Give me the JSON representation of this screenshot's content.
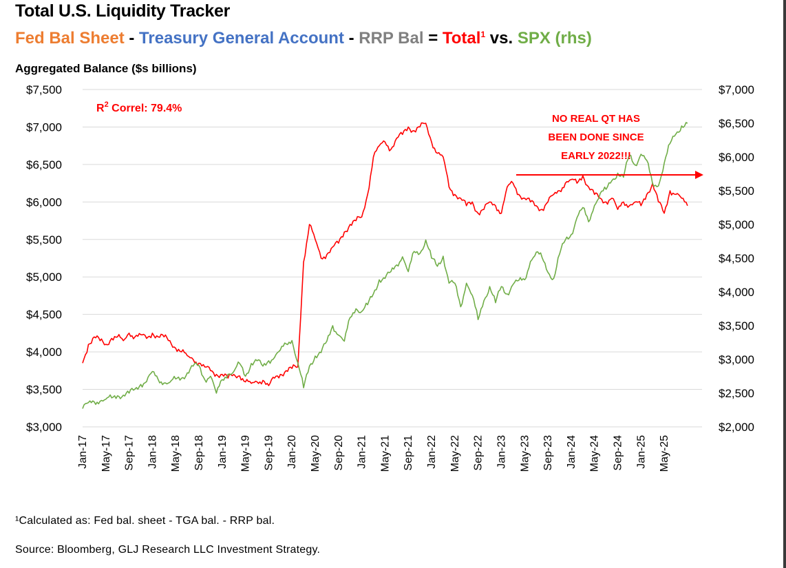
{
  "header": {
    "title": "Total U.S. Liquidity Tracker",
    "subtitle": {
      "fed": "Fed Bal Sheet",
      "sep1": " - ",
      "tga": "Treasury General Account",
      "sep2": " - ",
      "rrp": "RRP Bal",
      "eq": " = ",
      "total": "Total",
      "total_sup": "1",
      "vs": " vs. ",
      "spx": "SPX (rhs)"
    },
    "unit_label": "Aggregated Balance ($s billions)"
  },
  "colors": {
    "fed": "#ed7d31",
    "tga": "#4472c4",
    "rrp": "#808080",
    "total": "#ff0000",
    "spx": "#70ad47",
    "grid": "#d9d9d9"
  },
  "annotations": {
    "correl_prefix": "R",
    "correl_sup": "2",
    "correl_text": " Correl: 79.4%",
    "qt_line1": "NO REAL QT HAS",
    "qt_line2": "BEEN DONE SINCE",
    "qt_line3": "EARLY 2022!!!"
  },
  "footer": {
    "note": "¹Calculated as: Fed bal. sheet - TGA bal. - RRP bal.",
    "source": "Source: Bloomberg, GLJ Research LLC Investment Strategy."
  },
  "chart_data": {
    "type": "line",
    "x_tick_labels": [
      "Jan-17",
      "May-17",
      "Sep-17",
      "Jan-18",
      "May-18",
      "Sep-18",
      "Jan-19",
      "May-19",
      "Sep-19",
      "Jan-20",
      "May-20",
      "Sep-20",
      "Jan-21",
      "May-21",
      "Sep-21",
      "Jan-22",
      "May-22",
      "Sep-22",
      "Jan-23",
      "May-23",
      "Sep-23",
      "Jan-24",
      "May-24",
      "Sep-24",
      "Jan-25",
      "May-25"
    ],
    "y_left": {
      "label": "Aggregated Balance ($s billions)",
      "lim": [
        3000,
        7500
      ],
      "step": 500,
      "ticks": [
        "$3,000",
        "$3,500",
        "$4,000",
        "$4,500",
        "$5,000",
        "$5,500",
        "$6,000",
        "$6,500",
        "$7,000",
        "$7,500"
      ]
    },
    "y_right": {
      "lim": [
        2000,
        7000
      ],
      "step": 500,
      "ticks": [
        "$2,000",
        "$2,500",
        "$3,000",
        "$3,500",
        "$4,000",
        "$4,500",
        "$5,000",
        "$5,500",
        "$6,000",
        "$6,500",
        "$7,000"
      ]
    },
    "grid": true,
    "series": [
      {
        "name": "Total",
        "axis": "left",
        "x": [
          "2017-01",
          "2017-02",
          "2017-03",
          "2017-04",
          "2017-05",
          "2017-06",
          "2017-07",
          "2017-08",
          "2017-09",
          "2017-10",
          "2017-11",
          "2017-12",
          "2018-01",
          "2018-02",
          "2018-03",
          "2018-04",
          "2018-05",
          "2018-06",
          "2018-07",
          "2018-08",
          "2018-09",
          "2018-10",
          "2018-11",
          "2018-12",
          "2019-01",
          "2019-02",
          "2019-03",
          "2019-04",
          "2019-05",
          "2019-06",
          "2019-07",
          "2019-08",
          "2019-09",
          "2019-10",
          "2019-11",
          "2019-12",
          "2020-01",
          "2020-02",
          "2020-03",
          "2020-04",
          "2020-05",
          "2020-06",
          "2020-07",
          "2020-08",
          "2020-09",
          "2020-10",
          "2020-11",
          "2020-12",
          "2021-01",
          "2021-02",
          "2021-03",
          "2021-04",
          "2021-05",
          "2021-06",
          "2021-07",
          "2021-08",
          "2021-09",
          "2021-10",
          "2021-11",
          "2021-12",
          "2022-01",
          "2022-02",
          "2022-03",
          "2022-04",
          "2022-05",
          "2022-06",
          "2022-07",
          "2022-08",
          "2022-09",
          "2022-10",
          "2022-11",
          "2022-12",
          "2023-01",
          "2023-02",
          "2023-03",
          "2023-04",
          "2023-05",
          "2023-06",
          "2023-07",
          "2023-08",
          "2023-09",
          "2023-10",
          "2023-11",
          "2023-12",
          "2024-01",
          "2024-02",
          "2024-03",
          "2024-04",
          "2024-05",
          "2024-06",
          "2024-07",
          "2024-08",
          "2024-09",
          "2024-10",
          "2024-11",
          "2024-12",
          "2025-01",
          "2025-02",
          "2025-03",
          "2025-04",
          "2025-05",
          "2025-06",
          "2025-07",
          "2025-08",
          "2025-09"
        ],
        "values": [
          3850,
          4100,
          4200,
          4150,
          4100,
          4180,
          4200,
          4150,
          4250,
          4200,
          4230,
          4180,
          4250,
          4200,
          4200,
          4150,
          4050,
          4000,
          3950,
          3900,
          3850,
          3800,
          3750,
          3700,
          3700,
          3650,
          3700,
          3680,
          3600,
          3580,
          3600,
          3620,
          3550,
          3650,
          3700,
          3750,
          3780,
          3800,
          5200,
          5700,
          5500,
          5250,
          5300,
          5400,
          5450,
          5600,
          5700,
          5750,
          5800,
          6100,
          6600,
          6750,
          6800,
          6700,
          6850,
          6900,
          7000,
          6950,
          7000,
          7050,
          6800,
          6650,
          6600,
          6200,
          6100,
          6050,
          5950,
          6000,
          5850,
          5900,
          6000,
          5950,
          5850,
          6200,
          6250,
          6100,
          6050,
          6000,
          5950,
          5900,
          6000,
          6100,
          6150,
          6250,
          6300,
          6250,
          6350,
          6200,
          6100,
          6050,
          6000,
          6050,
          5900,
          6000,
          5950,
          6000,
          5950,
          6100,
          6250,
          6000,
          5850,
          6150,
          6100,
          6050,
          5950
        ]
      },
      {
        "name": "SPX (rhs)",
        "axis": "right",
        "x": [
          "2017-01",
          "2017-02",
          "2017-03",
          "2017-04",
          "2017-05",
          "2017-06",
          "2017-07",
          "2017-08",
          "2017-09",
          "2017-10",
          "2017-11",
          "2017-12",
          "2018-01",
          "2018-02",
          "2018-03",
          "2018-04",
          "2018-05",
          "2018-06",
          "2018-07",
          "2018-08",
          "2018-09",
          "2018-10",
          "2018-11",
          "2018-12",
          "2019-01",
          "2019-02",
          "2019-03",
          "2019-04",
          "2019-05",
          "2019-06",
          "2019-07",
          "2019-08",
          "2019-09",
          "2019-10",
          "2019-11",
          "2019-12",
          "2020-01",
          "2020-02",
          "2020-03",
          "2020-04",
          "2020-05",
          "2020-06",
          "2020-07",
          "2020-08",
          "2020-09",
          "2020-10",
          "2020-11",
          "2020-12",
          "2021-01",
          "2021-02",
          "2021-03",
          "2021-04",
          "2021-05",
          "2021-06",
          "2021-07",
          "2021-08",
          "2021-09",
          "2021-10",
          "2021-11",
          "2021-12",
          "2022-01",
          "2022-02",
          "2022-03",
          "2022-04",
          "2022-05",
          "2022-06",
          "2022-07",
          "2022-08",
          "2022-09",
          "2022-10",
          "2022-11",
          "2022-12",
          "2023-01",
          "2023-02",
          "2023-03",
          "2023-04",
          "2023-05",
          "2023-06",
          "2023-07",
          "2023-08",
          "2023-09",
          "2023-10",
          "2023-11",
          "2023-12",
          "2024-01",
          "2024-02",
          "2024-03",
          "2024-04",
          "2024-05",
          "2024-06",
          "2024-07",
          "2024-08",
          "2024-09",
          "2024-10",
          "2024-11",
          "2024-12",
          "2025-01",
          "2025-02",
          "2025-03",
          "2025-04",
          "2025-05",
          "2025-06",
          "2025-07",
          "2025-08",
          "2025-09"
        ],
        "values": [
          2270,
          2360,
          2370,
          2380,
          2410,
          2430,
          2460,
          2470,
          2500,
          2560,
          2630,
          2670,
          2820,
          2700,
          2650,
          2660,
          2710,
          2720,
          2800,
          2900,
          2910,
          2700,
          2750,
          2500,
          2700,
          2780,
          2820,
          2940,
          2750,
          2940,
          2980,
          2900,
          2980,
          3030,
          3140,
          3230,
          3280,
          2950,
          2580,
          2900,
          3050,
          3100,
          3270,
          3500,
          3360,
          3270,
          3620,
          3750,
          3710,
          3810,
          3970,
          4180,
          4200,
          4300,
          4400,
          4520,
          4300,
          4600,
          4570,
          4770,
          4500,
          4380,
          4530,
          4130,
          4130,
          3780,
          4130,
          3950,
          3590,
          3870,
          4080,
          3840,
          4080,
          3970,
          4110,
          4170,
          4180,
          4450,
          4590,
          4510,
          4290,
          4200,
          4560,
          4770,
          4850,
          5100,
          5250,
          5040,
          5280,
          5460,
          5520,
          5650,
          5760,
          5700,
          6030,
          5880,
          6040,
          5950,
          5600,
          5570,
          5910,
          6200,
          6340,
          6460,
          6500
        ]
      }
    ]
  }
}
